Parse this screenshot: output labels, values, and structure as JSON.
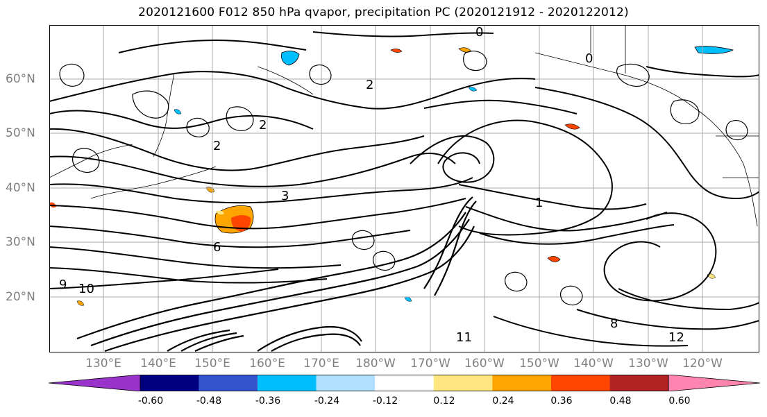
{
  "title": "2020121600 F012 850 hPa qvapor, precipitation PC (2020121912 - 2020122012)",
  "lat_labels": [
    "60°N",
    "50°N",
    "40°N",
    "30°N",
    "20°N"
  ],
  "lon_labels": [
    "130°E",
    "140°E",
    "150°E",
    "160°E",
    "170°E",
    "180°W",
    "170°W",
    "160°W",
    "150°W",
    "140°W",
    "130°W",
    "120°W"
  ],
  "contour_labels": [
    "0",
    "0",
    "2",
    "2",
    "2",
    "3",
    "6",
    "10",
    "11",
    "12",
    "8",
    "1",
    "9"
  ],
  "colorbar": {
    "colors": [
      "#9933cc",
      "#000080",
      "#3355cc",
      "#00bfff",
      "#b0e0ff",
      "#ffffff",
      "#ffe680",
      "#ffa500",
      "#ff4500",
      "#b22222",
      "#ff85b0"
    ],
    "tick_labels": [
      "-0.60",
      "-0.48",
      "-0.36",
      "-0.24",
      "-0.12",
      "0.12",
      "0.24",
      "0.36",
      "0.48",
      "0.60"
    ]
  },
  "colors": {
    "grid": "#aaaaaa",
    "contour": "#000000",
    "axis_label": "#808080"
  }
}
